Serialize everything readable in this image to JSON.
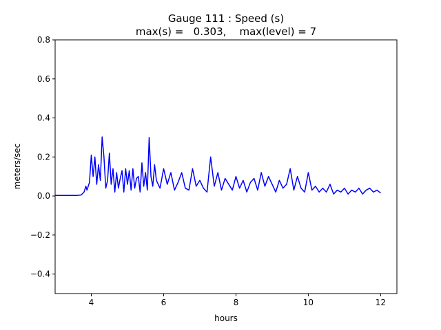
{
  "chart_data": {
    "type": "line",
    "title_line1": "Gauge 111 : Speed (s)",
    "title_line2": "max(s) =   0.303,    max(level) = 7",
    "xlabel": "hours",
    "ylabel": "meters/sec",
    "xlim": [
      3.0,
      12.45
    ],
    "ylim": [
      -0.5,
      0.8
    ],
    "xticks": [
      4,
      6,
      8,
      10,
      12
    ],
    "yticks": [
      -0.4,
      -0.2,
      0.0,
      0.2,
      0.4,
      0.6,
      0.8
    ],
    "ytick_labels": [
      "−0.4",
      "−0.2",
      "0.0",
      "0.2",
      "0.4",
      "0.6",
      "0.8"
    ],
    "grid": false,
    "series": [
      {
        "color": "#0000ff",
        "x": [
          3.0,
          3.3,
          3.6,
          3.72,
          3.8,
          3.85,
          3.88,
          3.95,
          4.0,
          4.05,
          4.1,
          4.15,
          4.2,
          4.25,
          4.3,
          4.35,
          4.4,
          4.45,
          4.5,
          4.55,
          4.6,
          4.65,
          4.7,
          4.75,
          4.8,
          4.85,
          4.9,
          4.95,
          5.0,
          5.05,
          5.1,
          5.15,
          5.2,
          5.25,
          5.3,
          5.35,
          5.4,
          5.45,
          5.5,
          5.55,
          5.6,
          5.65,
          5.7,
          5.75,
          5.8,
          5.9,
          6.0,
          6.1,
          6.2,
          6.3,
          6.4,
          6.5,
          6.6,
          6.7,
          6.8,
          6.9,
          7.0,
          7.1,
          7.2,
          7.3,
          7.4,
          7.5,
          7.6,
          7.7,
          7.8,
          7.9,
          8.0,
          8.1,
          8.2,
          8.3,
          8.4,
          8.5,
          8.6,
          8.7,
          8.8,
          8.9,
          9.0,
          9.1,
          9.2,
          9.3,
          9.4,
          9.5,
          9.6,
          9.7,
          9.8,
          9.9,
          10.0,
          10.1,
          10.2,
          10.3,
          10.4,
          10.5,
          10.6,
          10.7,
          10.8,
          10.9,
          11.0,
          11.1,
          11.2,
          11.3,
          11.4,
          11.5,
          11.6,
          11.7,
          11.8,
          11.9,
          12.0
        ],
        "y": [
          0.003,
          0.003,
          0.003,
          0.005,
          0.02,
          0.05,
          0.03,
          0.07,
          0.21,
          0.1,
          0.2,
          0.06,
          0.16,
          0.08,
          0.303,
          0.2,
          0.04,
          0.08,
          0.22,
          0.06,
          0.14,
          0.02,
          0.12,
          0.04,
          0.09,
          0.13,
          0.02,
          0.14,
          0.06,
          0.13,
          0.03,
          0.14,
          0.04,
          0.09,
          0.1,
          0.02,
          0.17,
          0.05,
          0.12,
          0.03,
          0.3,
          0.1,
          0.05,
          0.16,
          0.08,
          0.04,
          0.14,
          0.06,
          0.12,
          0.03,
          0.07,
          0.12,
          0.04,
          0.03,
          0.14,
          0.05,
          0.08,
          0.04,
          0.02,
          0.2,
          0.05,
          0.12,
          0.03,
          0.09,
          0.06,
          0.03,
          0.1,
          0.04,
          0.08,
          0.02,
          0.07,
          0.09,
          0.03,
          0.12,
          0.05,
          0.1,
          0.06,
          0.02,
          0.08,
          0.04,
          0.06,
          0.14,
          0.03,
          0.1,
          0.04,
          0.02,
          0.12,
          0.03,
          0.05,
          0.02,
          0.04,
          0.02,
          0.06,
          0.01,
          0.03,
          0.02,
          0.04,
          0.01,
          0.03,
          0.02,
          0.04,
          0.01,
          0.03,
          0.04,
          0.02,
          0.03,
          0.015
        ]
      }
    ]
  }
}
